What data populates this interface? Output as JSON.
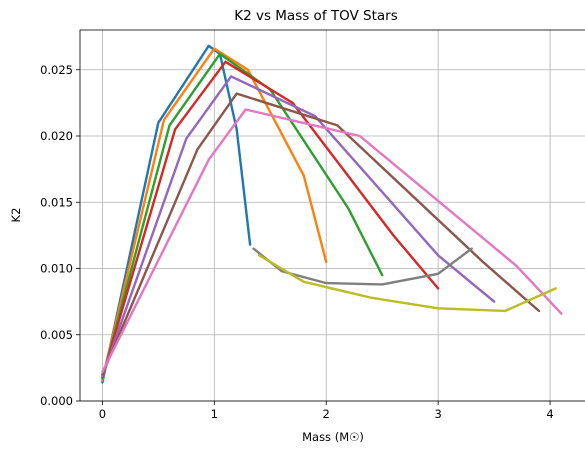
{
  "chart_data": {
    "type": "line",
    "title": "K2 vs Mass of TOV Stars",
    "xlabel": "Mass (M☉)",
    "ylabel": "K2",
    "xlim": [
      -0.2,
      4.33
    ],
    "ylim": [
      0.0,
      0.028
    ],
    "xticks": [
      0,
      1,
      2,
      3,
      4
    ],
    "yticks": [
      0.0,
      0.005,
      0.01,
      0.015,
      0.02,
      0.025
    ],
    "xtick_labels": [
      "0",
      "1",
      "2",
      "3",
      "4"
    ],
    "ytick_labels": [
      "0.000",
      "0.005",
      "0.010",
      "0.015",
      "0.020",
      "0.025"
    ],
    "grid": true,
    "legend": "none",
    "color_cycle": [
      "#1f77b4",
      "#ff7f0e",
      "#2ca02c",
      "#d62728",
      "#9467bd",
      "#8c564b",
      "#e377c2",
      "#7f7f7f",
      "#bcbd22",
      "#17becf"
    ],
    "series": [
      {
        "x": [
          0.0,
          0.5,
          0.95,
          1.05,
          1.2,
          1.32
        ],
        "y": [
          0.0014,
          0.021,
          0.0268,
          0.0262,
          0.0205,
          0.0118
        ]
      },
      {
        "x": [
          0.0,
          0.55,
          1.0,
          1.3,
          1.8,
          2.0
        ],
        "y": [
          0.0016,
          0.0212,
          0.0266,
          0.025,
          0.017,
          0.0105
        ]
      },
      {
        "x": [
          0.0,
          0.6,
          1.05,
          1.5,
          2.2,
          2.5
        ],
        "y": [
          0.0017,
          0.0208,
          0.0262,
          0.0235,
          0.0145,
          0.0095
        ]
      },
      {
        "x": [
          0.0,
          0.65,
          1.1,
          1.7,
          2.6,
          3.0
        ],
        "y": [
          0.0018,
          0.0205,
          0.0256,
          0.0225,
          0.0125,
          0.0085
        ]
      },
      {
        "x": [
          0.0,
          0.75,
          1.15,
          1.9,
          3.0,
          3.5
        ],
        "y": [
          0.0019,
          0.0198,
          0.0245,
          0.0215,
          0.011,
          0.0075
        ]
      },
      {
        "x": [
          0.0,
          0.85,
          1.2,
          2.1,
          3.4,
          3.9
        ],
        "y": [
          0.002,
          0.019,
          0.0232,
          0.0208,
          0.0105,
          0.0068
        ]
      },
      {
        "x": [
          0.0,
          0.95,
          1.28,
          2.3,
          3.7,
          4.1
        ],
        "y": [
          0.0022,
          0.0182,
          0.022,
          0.02,
          0.0102,
          0.0066
        ]
      },
      {
        "x": [
          1.35,
          1.6,
          2.0,
          2.5,
          3.0,
          3.3
        ],
        "y": [
          0.0115,
          0.0098,
          0.0089,
          0.0088,
          0.0096,
          0.0115
        ]
      },
      {
        "x": [
          1.4,
          1.8,
          2.4,
          3.0,
          3.6,
          4.05
        ],
        "y": [
          0.011,
          0.009,
          0.0078,
          0.007,
          0.0068,
          0.0085
        ]
      }
    ]
  }
}
